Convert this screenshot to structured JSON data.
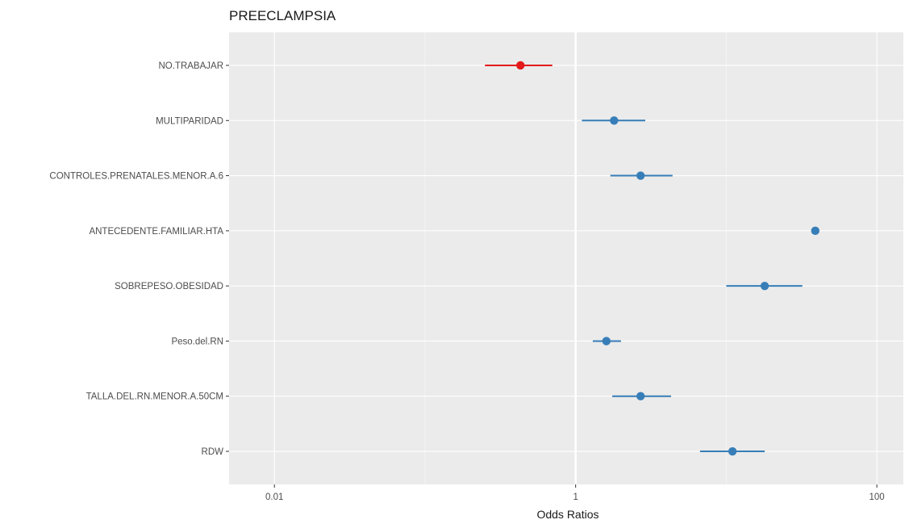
{
  "chart_data": {
    "type": "scatter",
    "subtype": "forest-plot",
    "title": "PREECLAMPSIA",
    "xlabel": "Odds Ratios",
    "ylabel": "",
    "x_scale": "log10",
    "xlim": [
      0.005,
      150
    ],
    "x_ticks": [
      {
        "value": 0.01,
        "label": "0.01"
      },
      {
        "value": 1,
        "label": "1"
      },
      {
        "value": 100,
        "label": "100"
      }
    ],
    "reference_line": 1,
    "grid": true,
    "colors": {
      "positive": "#377eb8",
      "negative": "#e41a1c",
      "panel_bg": "#ebebeb",
      "grid": "#ffffff"
    },
    "rows": [
      {
        "label": "NO.TRABAJAR",
        "or": 0.43,
        "low": 0.25,
        "high": 0.7,
        "direction": "negative"
      },
      {
        "label": "MULTIPARIDAD",
        "or": 1.8,
        "low": 1.1,
        "high": 2.9,
        "direction": "positive"
      },
      {
        "label": "CONTROLES.PRENATALES.MENOR.A.6",
        "or": 2.7,
        "low": 1.7,
        "high": 4.4,
        "direction": "positive"
      },
      {
        "label": "ANTECEDENTE.FAMILIAR.HTA",
        "or": 39,
        "low": null,
        "high": null,
        "direction": "positive"
      },
      {
        "label": "SOBREPESO.OBESIDAD",
        "or": 18,
        "low": 10,
        "high": 32,
        "direction": "positive"
      },
      {
        "label": "Peso.del.RN",
        "or": 1.6,
        "low": 1.3,
        "high": 2.0,
        "direction": "positive"
      },
      {
        "label": "TALLA.DEL.RN.MENOR.A.50CM",
        "or": 2.7,
        "low": 1.75,
        "high": 4.3,
        "direction": "positive"
      },
      {
        "label": "RDW",
        "or": 11,
        "low": 6.7,
        "high": 18,
        "direction": "positive"
      }
    ]
  }
}
